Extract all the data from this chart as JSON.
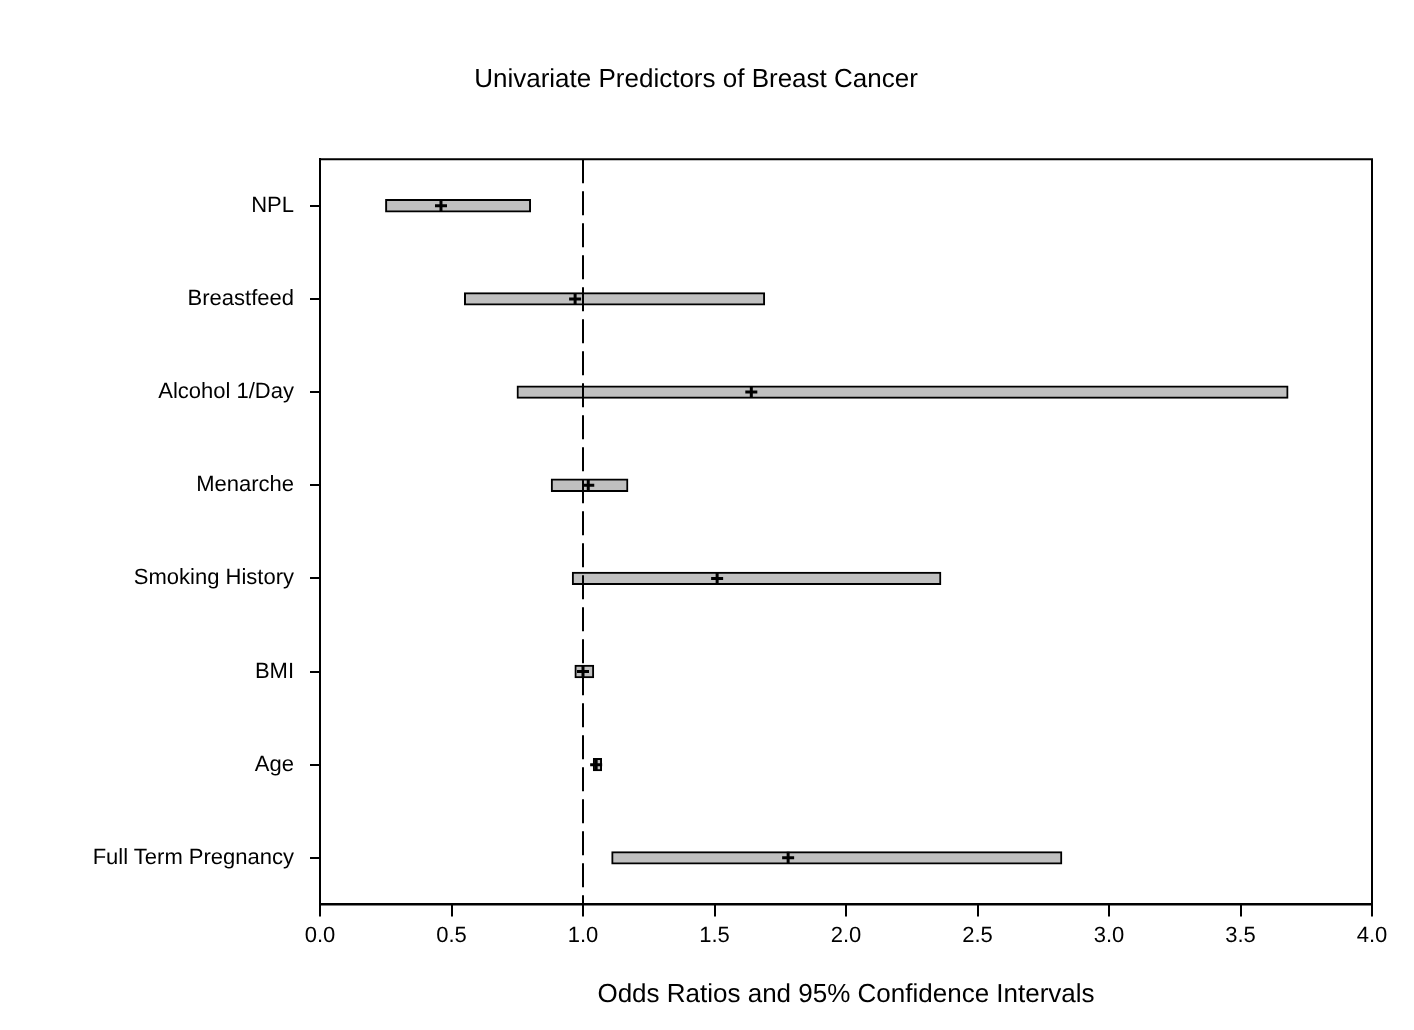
{
  "chart_data": {
    "type": "bar",
    "orientation": "horizontal",
    "title": "Univariate Predictors of Breast Cancer",
    "xlabel": "Odds Ratios and 95% Confidence Intervals",
    "categories": [
      "NPL",
      "Breastfeed",
      "Alcohol 1/Day",
      "Menarche",
      "Smoking History",
      "BMI",
      "Age",
      "Full Term Pregnancy"
    ],
    "series": [
      {
        "type": "bar",
        "color": "#c0c0c0",
        "base": [
          0.25,
          0.55,
          0.75,
          0.88,
          0.96,
          0.97,
          1.04,
          1.11
        ],
        "values": [
          0.55,
          1.14,
          2.93,
          0.29,
          1.4,
          0.07,
          0.03,
          1.71
        ]
      },
      {
        "type": "scatter",
        "color": "#000000",
        "marker": "cross",
        "values": [
          0.46,
          0.97,
          1.64,
          1.02,
          1.51,
          1.0,
          1.05,
          1.78
        ]
      }
    ],
    "xlim": [
      0,
      4
    ],
    "xticks": [
      {
        "value": 0,
        "label": "0.0"
      },
      {
        "value": 0.5,
        "label": "0.5"
      },
      {
        "value": 1,
        "label": "1.0"
      },
      {
        "value": 1.5,
        "label": "1.5"
      },
      {
        "value": 2,
        "label": "2.0"
      },
      {
        "value": 2.5,
        "label": "2.5"
      },
      {
        "value": 3,
        "label": "3.0"
      },
      {
        "value": 3.5,
        "label": "3.5"
      },
      {
        "value": 4,
        "label": "4.0"
      }
    ],
    "ref_lines": [
      {
        "axis": "x",
        "value": 1,
        "color": "#000000",
        "line_style": "dashed"
      }
    ],
    "grid": false,
    "legend": false
  }
}
